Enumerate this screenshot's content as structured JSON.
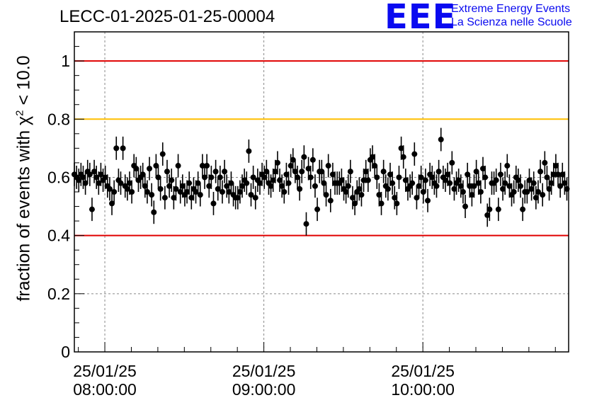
{
  "header": {
    "title": "LECC-01-2025-01-25-00004",
    "logo_text": "EEE",
    "logo_line1": "Extreme Energy Events",
    "logo_line2": "La Scienza nelle Scuole"
  },
  "colors": {
    "red_threshold": "#e00000",
    "orange_threshold": "#ffbf00",
    "logo_blue": "#0a0af0",
    "markers": "#000000"
  },
  "chart_data": {
    "type": "scatter",
    "title": "LECC-01-2025-01-25-00004",
    "ylabel_prefix": "fraction of events with ",
    "ylabel_symbol": "χ",
    "ylabel_sup": "2",
    "ylabel_suffix": " < 10.0",
    "xlabel": "",
    "ylim": [
      0,
      1.1
    ],
    "xlim": [
      "25/01/25 07:48:30",
      "25/01/25 10:55:00"
    ],
    "y_ticks": [
      "0",
      "0.2",
      "0.4",
      "0.6",
      "0.8",
      "1"
    ],
    "x_ticks": [
      {
        "date": "25/01/25",
        "time": "08:00:00"
      },
      {
        "date": "25/01/25",
        "time": "09:00:00"
      },
      {
        "date": "25/01/25",
        "time": "10:00:00"
      }
    ],
    "grid": true,
    "reference_lines": [
      {
        "y": 1.0,
        "color": "red"
      },
      {
        "y": 0.8,
        "color": "orange"
      },
      {
        "y": 0.4,
        "color": "red"
      }
    ],
    "error_bar": 0.04,
    "points_time_start": "07:48:30",
    "points_time_step_seconds": 50,
    "y": [
      0.61,
      0.6,
      0.59,
      0.61,
      0.6,
      0.58,
      0.62,
      0.61,
      0.49,
      0.62,
      0.6,
      0.58,
      0.61,
      0.59,
      0.6,
      0.57,
      0.56,
      0.51,
      0.55,
      0.7,
      0.59,
      0.58,
      0.7,
      0.57,
      0.56,
      0.58,
      0.55,
      0.64,
      0.63,
      0.59,
      0.6,
      0.61,
      0.57,
      0.55,
      0.63,
      0.54,
      0.48,
      0.64,
      0.6,
      0.56,
      0.68,
      0.53,
      0.62,
      0.57,
      0.59,
      0.53,
      0.56,
      0.64,
      0.55,
      0.57,
      0.54,
      0.55,
      0.58,
      0.53,
      0.56,
      0.55,
      0.58,
      0.54,
      0.64,
      0.6,
      0.64,
      0.57,
      0.6,
      0.51,
      0.62,
      0.56,
      0.6,
      0.55,
      0.62,
      0.57,
      0.55,
      0.58,
      0.54,
      0.53,
      0.53,
      0.55,
      0.57,
      0.59,
      0.58,
      0.69,
      0.54,
      0.6,
      0.53,
      0.59,
      0.58,
      0.61,
      0.6,
      0.62,
      0.58,
      0.57,
      0.59,
      0.62,
      0.65,
      0.59,
      0.57,
      0.55,
      0.61,
      0.58,
      0.64,
      0.66,
      0.62,
      0.6,
      0.56,
      0.62,
      0.67,
      0.44,
      0.63,
      0.6,
      0.66,
      0.57,
      0.49,
      0.62,
      0.62,
      0.58,
      0.54,
      0.64,
      0.52,
      0.61,
      0.58,
      0.58,
      0.58,
      0.59,
      0.56,
      0.55,
      0.57,
      0.62,
      0.53,
      0.51,
      0.55,
      0.56,
      0.54,
      0.59,
      0.62,
      0.59,
      0.66,
      0.67,
      0.64,
      0.6,
      0.54,
      0.51,
      0.62,
      0.57,
      0.56,
      0.61,
      0.58,
      0.53,
      0.51,
      0.6,
      0.7,
      0.67,
      0.59,
      0.56,
      0.57,
      0.58,
      0.68,
      0.53,
      0.57,
      0.6,
      0.55,
      0.59,
      0.52,
      0.61,
      0.6,
      0.58,
      0.57,
      0.62,
      0.73,
      0.6,
      0.59,
      0.61,
      0.58,
      0.65,
      0.56,
      0.58,
      0.59,
      0.57,
      0.55,
      0.5,
      0.61,
      0.57,
      0.54,
      0.57,
      0.62,
      0.58,
      0.55,
      0.63,
      0.6,
      0.47,
      0.49,
      0.58,
      0.58,
      0.59,
      0.49,
      0.61,
      0.56,
      0.58,
      0.64,
      0.57,
      0.54,
      0.55,
      0.6,
      0.59,
      0.57,
      0.49,
      0.55,
      0.55,
      0.59,
      0.56,
      0.58,
      0.53,
      0.55,
      0.62,
      0.54,
      0.65,
      0.6,
      0.56,
      0.58,
      0.61,
      0.64,
      0.61,
      0.57,
      0.61,
      0.58,
      0.56,
      0.6
    ]
  }
}
